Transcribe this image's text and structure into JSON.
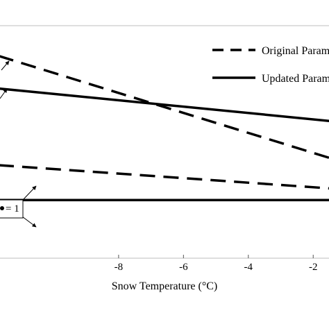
{
  "chart_data": {
    "type": "line",
    "title": "",
    "xlabel": "Snow Temperature (°C)",
    "ylabel": "",
    "xlim": [
      -11.7,
      -1.47
    ],
    "ylim": [
      0,
      1
    ],
    "grid": false,
    "x_ticks": [
      -8,
      -6,
      -4,
      -2
    ],
    "x_tick_labels": [
      "-8",
      "-6",
      "-4",
      "-2"
    ],
    "legend": {
      "placement": "top-right",
      "entries": [
        {
          "label": "Original Param",
          "style": "dashed"
        },
        {
          "label": "Updated Param",
          "style": "solid"
        }
      ]
    },
    "series": [
      {
        "name": "Original Param",
        "style": "dashed",
        "x": [
          -11.7,
          -1.47
        ],
        "y": [
          0.87,
          0.43
        ]
      },
      {
        "name": "Updated Param",
        "style": "solid",
        "x": [
          -11.7,
          -1.47
        ],
        "y": [
          0.73,
          0.59
        ]
      },
      {
        "name": "Original Param",
        "style": "dashed",
        "x": [
          -11.7,
          -1.47
        ],
        "y": [
          0.4,
          0.3
        ]
      },
      {
        "name": "Updated Param",
        "style": "solid",
        "x": [
          -11.7,
          -1.47
        ],
        "y": [
          0.25,
          0.25
        ]
      }
    ],
    "annotations": [
      {
        "text": "",
        "x": -11.7,
        "y": 0.87
      },
      {
        "text": "",
        "x": -11.7,
        "y": 0.73
      },
      {
        "text": "",
        "x": -8.9,
        "y": 0.4
      },
      {
        "text": "= 1",
        "x": -8.9,
        "y": 0.25
      }
    ]
  }
}
